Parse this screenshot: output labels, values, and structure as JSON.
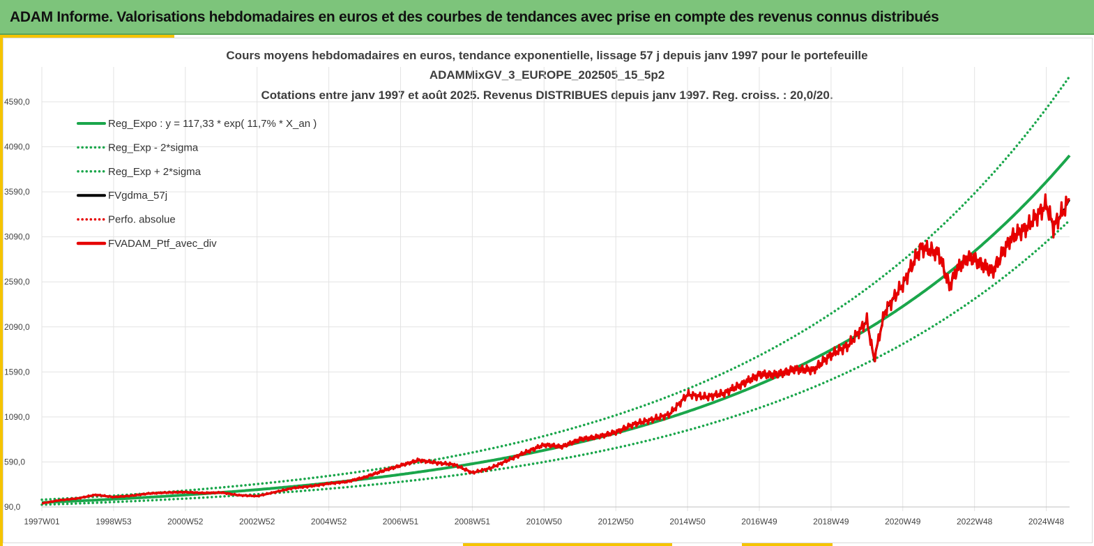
{
  "banner": {
    "title": "ADAM Informe. Valorisations hebdomadaires en euros et des courbes de tendances avec prise en compte des revenus connus distribués"
  },
  "colors": {
    "banner": "#7dc47b",
    "accent": "#f5c400",
    "trend": "#1aa64b",
    "smooth": "#000000",
    "portfolio": "#e60000",
    "grid": "#e3e3e3"
  },
  "chart_data": {
    "type": "line",
    "title_lines": [
      "Cours moyens hebdomadaires  en euros, tendance exponentielle, lissage 57 j depuis janv 1997 pour le portefeuille",
      "ADAMMixGV_3_EUROPE_202505_15_5p2",
      "Cotations  entre janv 1997 et août 2025. Revenus DISTRIBUES depuis janv 1997. Reg. croiss. : 20,0/20."
    ],
    "x_ticks": [
      "1997W01",
      "1998W53",
      "2000W52",
      "2002W52",
      "2004W52",
      "2006W51",
      "2008W51",
      "2010W50",
      "2012W50",
      "2014W50",
      "2016W49",
      "2018W49",
      "2020W49",
      "2022W48",
      "2024W48"
    ],
    "x_tick_years": [
      1997,
      1999,
      2001,
      2003,
      2005,
      2007,
      2009,
      2011,
      2013,
      2015,
      2017,
      2019,
      2021,
      2023,
      2025
    ],
    "xlim": [
      1997,
      2025.65
    ],
    "y_ticks": [
      "90,0",
      "590,0",
      "1090,0",
      "1590,0",
      "2090,0",
      "2590,0",
      "3090,0",
      "3590,0",
      "4090,0",
      "4590,0"
    ],
    "y_tick_values": [
      90,
      590,
      1090,
      1590,
      2090,
      2590,
      3090,
      3590,
      4090,
      4590
    ],
    "ylim": [
      90,
      4590
    ],
    "grid": true,
    "legend_position": "top-left",
    "trend": {
      "a": 117.33,
      "rate": 0.117,
      "sigma_factor": 1.22
    },
    "series": [
      {
        "name": "Reg_Expo : y = 117,33 * exp( 11,7% *  X_an )",
        "style": "solid",
        "color": "#1aa64b",
        "kind": "trend"
      },
      {
        "name": "Reg_Exp - 2*sigma",
        "style": "dotted",
        "color": "#1aa64b",
        "kind": "lower"
      },
      {
        "name": "Reg_Exp + 2*sigma",
        "style": "dotted",
        "color": "#1aa64b",
        "kind": "upper"
      },
      {
        "name": "FVgdma_57j",
        "style": "solid",
        "color": "#000000",
        "kind": "smooth"
      },
      {
        "name": "Perfo. absolue",
        "style": "dotted",
        "color": "#e60000",
        "kind": "perfo"
      },
      {
        "name": "FVADAM_Ptf_avec_div",
        "style": "solid-thick",
        "color": "#e60000",
        "kind": "portfolio",
        "x": [
          1997.0,
          1997.5,
          1998.0,
          1998.5,
          1999.0,
          1999.5,
          2000.0,
          2000.5,
          2001.0,
          2001.5,
          2002.0,
          2002.5,
          2003.0,
          2003.5,
          2004.0,
          2004.5,
          2005.0,
          2005.5,
          2006.0,
          2006.5,
          2007.0,
          2007.5,
          2008.0,
          2008.5,
          2009.0,
          2009.5,
          2010.0,
          2010.5,
          2011.0,
          2011.5,
          2012.0,
          2012.5,
          2013.0,
          2013.5,
          2014.0,
          2014.5,
          2015.0,
          2015.5,
          2016.0,
          2016.5,
          2017.0,
          2017.5,
          2018.0,
          2018.5,
          2019.0,
          2019.5,
          2020.0,
          2020.2,
          2020.5,
          2021.0,
          2021.5,
          2022.0,
          2022.3,
          2022.5,
          2022.8,
          2023.0,
          2023.5,
          2024.0,
          2024.5,
          2025.0,
          2025.2,
          2025.65
        ],
        "values": [
          130,
          165,
          185,
          225,
          200,
          215,
          240,
          250,
          255,
          245,
          250,
          220,
          210,
          255,
          300,
          320,
          350,
          370,
          420,
          490,
          550,
          610,
          580,
          560,
          470,
          520,
          610,
          700,
          780,
          760,
          840,
          870,
          920,
          1010,
          1060,
          1120,
          1340,
          1310,
          1350,
          1450,
          1560,
          1560,
          1620,
          1610,
          1780,
          1890,
          2160,
          1730,
          2260,
          2560,
          2970,
          2910,
          2540,
          2720,
          2860,
          2840,
          2700,
          3070,
          3210,
          3450,
          3200,
          3500
        ]
      }
    ]
  }
}
